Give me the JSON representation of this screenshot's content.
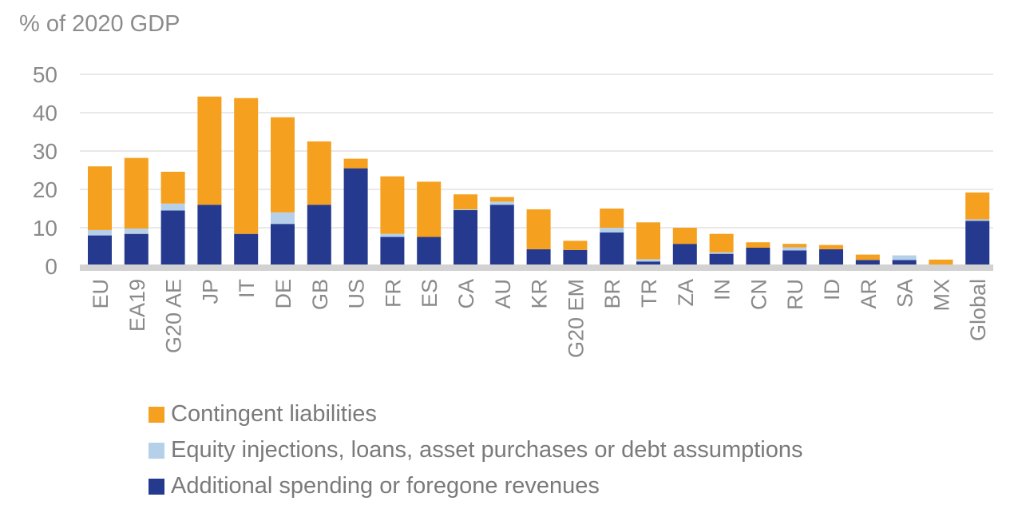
{
  "chart_data": {
    "type": "bar",
    "stacked": true,
    "ylabel": "% of 2020 GDP",
    "ylim": [
      0,
      50
    ],
    "yticks": [
      0,
      10,
      20,
      30,
      40,
      50
    ],
    "grid": true,
    "categories": [
      "EU",
      "EA19",
      "G20 AE",
      "JP",
      "IT",
      "DE",
      "GB",
      "US",
      "FR",
      "ES",
      "CA",
      "AU",
      "KR",
      "G20 EM",
      "BR",
      "TR",
      "ZA",
      "IN",
      "CN",
      "RU",
      "ID",
      "AR",
      "SA",
      "MX",
      "Global"
    ],
    "series": [
      {
        "name": "Additional spending or foregone revenues",
        "color": "#253a8e",
        "values": [
          8,
          8.4,
          14.5,
          16,
          8.4,
          11,
          16,
          25.5,
          7.6,
          7.6,
          14.6,
          16,
          4.4,
          4.2,
          8.8,
          1.2,
          5.8,
          3.2,
          4.8,
          4.1,
          4.4,
          1.6,
          1.6,
          0.1,
          11.8
        ]
      },
      {
        "name": "Equity injections, loans, asset purchases or debt assumptions",
        "color": "#b6d0ea",
        "values": [
          1.4,
          1.4,
          1.8,
          0,
          0,
          3,
          0,
          0,
          0.8,
          0,
          0.2,
          0.8,
          0,
          0,
          1.2,
          0.6,
          0,
          0.4,
          0,
          0.8,
          0,
          0,
          1.2,
          0,
          0.4
        ]
      },
      {
        "name": "Contingent liabilities",
        "color": "#f5a01e",
        "values": [
          16.6,
          18.4,
          8.3,
          28.2,
          35.4,
          24.8,
          16.5,
          2.5,
          15,
          14.4,
          3.9,
          1.2,
          10.4,
          2.4,
          5,
          9.6,
          4.2,
          4.8,
          1.4,
          0.9,
          1.1,
          1.4,
          0,
          1.6,
          7
        ]
      }
    ],
    "legend_order": [
      2,
      1,
      0
    ],
    "axis_color": "#d2d2d2",
    "grid_color": "#dcdcdc",
    "text_color": "#8a8a8a"
  }
}
